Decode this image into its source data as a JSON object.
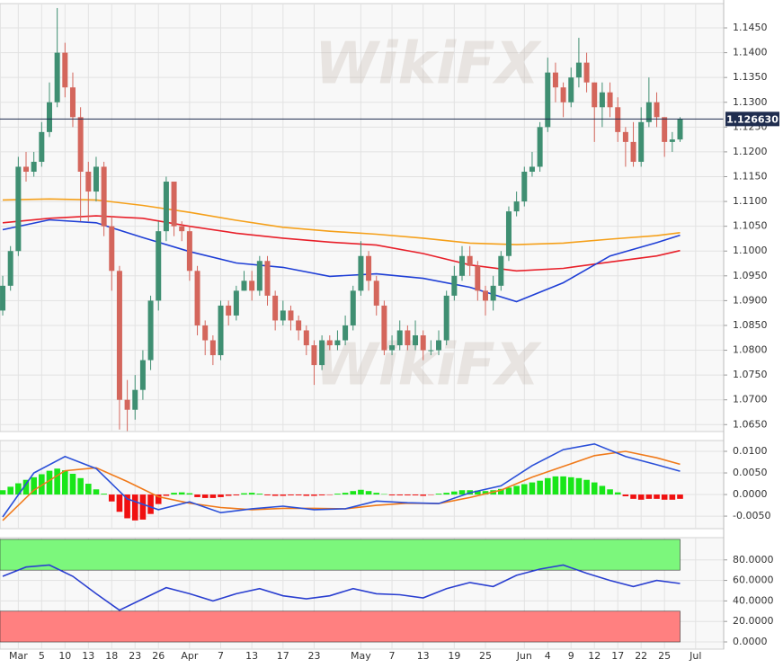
{
  "chart_data": [
    {
      "type": "candlestick",
      "xlim": [
        -0.35,
        92.6
      ],
      "ylim": [
        1.0636,
        1.1499
      ],
      "yticks": [
        {
          "value": 1.145,
          "label": "1.1450"
        },
        {
          "value": 1.14,
          "label": "1.1400"
        },
        {
          "value": 1.135,
          "label": "1.1350"
        },
        {
          "value": 1.13,
          "label": "1.1300"
        },
        {
          "value": 1.125,
          "label": "1.1250"
        },
        {
          "value": 1.12,
          "label": "1.1200"
        },
        {
          "value": 1.115,
          "label": "1.1150"
        },
        {
          "value": 1.11,
          "label": "1.1100"
        },
        {
          "value": 1.105,
          "label": "1.1050"
        },
        {
          "value": 1.1,
          "label": "1.1000"
        },
        {
          "value": 1.095,
          "label": "1.0950"
        },
        {
          "value": 1.09,
          "label": "1.0900"
        },
        {
          "value": 1.085,
          "label": "1.0850"
        },
        {
          "value": 1.08,
          "label": "1.0800"
        },
        {
          "value": 1.075,
          "label": "1.0750"
        },
        {
          "value": 1.07,
          "label": "1.0700"
        },
        {
          "value": 1.065,
          "label": "1.0650"
        }
      ],
      "grid": true,
      "up_color": "#3f8f72",
      "down_color": "#d4665c",
      "watermark": "WikiFX",
      "last_price": {
        "value": 1.12663,
        "label": "1.126630"
      },
      "last_color": "#1f2d4f",
      "open": [
        1.088,
        1.093,
        1.1,
        1.117,
        1.116,
        1.118,
        1.124,
        1.13,
        1.14,
        1.133,
        1.127,
        1.116,
        1.112,
        1.117,
        1.105,
        1.096,
        1.07,
        1.068,
        1.072,
        1.078,
        1.09,
        1.104,
        1.114,
        1.105,
        1.104,
        1.096,
        1.085,
        1.082,
        1.079,
        1.089,
        1.087,
        1.092,
        1.094,
        1.092,
        1.098,
        1.091,
        1.086,
        1.088,
        1.086,
        1.084,
        1.081,
        1.077,
        1.082,
        1.081,
        1.082,
        1.085,
        1.092,
        1.099,
        1.094,
        1.089,
        1.08,
        1.081,
        1.084,
        1.081,
        1.083,
        1.08,
        1.08,
        1.082,
        1.091,
        1.095,
        1.099,
        1.097,
        1.092,
        1.09,
        1.093,
        1.099,
        1.108,
        1.11,
        1.116,
        1.117,
        1.125,
        1.136,
        1.133,
        1.13,
        1.135,
        1.138,
        1.134,
        1.129,
        1.132,
        1.129,
        1.124,
        1.122,
        1.118,
        1.126,
        1.13,
        1.127,
        1.122,
        1.1225,
        null,
        null
      ],
      "high": [
        1.095,
        1.101,
        1.119,
        1.12,
        1.12,
        1.126,
        1.134,
        1.149,
        1.142,
        1.136,
        1.129,
        1.118,
        1.119,
        1.118,
        1.107,
        1.097,
        1.074,
        1.075,
        1.08,
        1.091,
        1.106,
        1.115,
        1.114,
        1.106,
        1.105,
        1.097,
        1.086,
        1.083,
        1.09,
        1.09,
        1.093,
        1.096,
        1.096,
        1.099,
        1.099,
        1.092,
        1.09,
        1.089,
        1.087,
        1.085,
        1.082,
        1.083,
        1.083,
        1.084,
        1.087,
        1.093,
        1.102,
        1.1,
        1.095,
        1.09,
        1.083,
        1.086,
        1.085,
        1.086,
        1.084,
        1.082,
        1.084,
        1.092,
        1.097,
        1.101,
        1.101,
        1.098,
        1.093,
        1.095,
        1.1,
        1.109,
        1.112,
        1.117,
        1.12,
        1.126,
        1.139,
        1.138,
        1.134,
        1.137,
        1.143,
        1.14,
        1.134,
        1.134,
        1.134,
        1.131,
        1.125,
        1.126,
        1.129,
        1.135,
        1.132,
        1.127,
        1.124,
        1.127,
        null,
        null
      ],
      "low": [
        1.087,
        1.092,
        1.099,
        1.114,
        1.115,
        1.117,
        1.123,
        1.129,
        1.131,
        1.125,
        1.106,
        1.106,
        1.11,
        1.103,
        1.092,
        1.064,
        1.0637,
        1.066,
        1.07,
        1.076,
        1.088,
        1.102,
        1.103,
        1.102,
        1.094,
        1.083,
        1.079,
        1.077,
        1.078,
        1.085,
        1.086,
        1.092,
        1.09,
        1.091,
        1.089,
        1.084,
        1.085,
        1.084,
        1.082,
        1.079,
        1.073,
        1.076,
        1.08,
        1.08,
        1.081,
        1.084,
        1.091,
        1.092,
        1.087,
        1.079,
        1.079,
        1.08,
        1.08,
        1.08,
        1.078,
        1.079,
        1.079,
        1.081,
        1.09,
        1.094,
        1.095,
        1.09,
        1.087,
        1.088,
        1.092,
        1.098,
        1.107,
        1.109,
        1.115,
        1.116,
        1.124,
        1.13,
        1.127,
        1.129,
        1.133,
        1.132,
        1.122,
        1.125,
        1.127,
        1.122,
        1.117,
        1.117,
        1.117,
        1.125,
        1.125,
        1.119,
        1.12,
        1.122,
        null,
        null
      ],
      "close": [
        1.093,
        1.1,
        1.117,
        1.116,
        1.118,
        1.124,
        1.13,
        1.14,
        1.133,
        1.127,
        1.116,
        1.112,
        1.117,
        1.105,
        1.096,
        1.07,
        1.068,
        1.072,
        1.078,
        1.09,
        1.104,
        1.114,
        1.105,
        1.104,
        1.096,
        1.085,
        1.082,
        1.079,
        1.089,
        1.087,
        1.092,
        1.094,
        1.092,
        1.098,
        1.091,
        1.086,
        1.088,
        1.086,
        1.084,
        1.081,
        1.077,
        1.082,
        1.081,
        1.082,
        1.085,
        1.092,
        1.099,
        1.094,
        1.089,
        1.08,
        1.081,
        1.084,
        1.081,
        1.083,
        1.08,
        1.08,
        1.082,
        1.091,
        1.095,
        1.099,
        1.097,
        1.092,
        1.09,
        1.093,
        1.099,
        1.108,
        1.11,
        1.116,
        1.117,
        1.125,
        1.136,
        1.133,
        1.13,
        1.135,
        1.138,
        1.134,
        1.129,
        1.132,
        1.129,
        1.124,
        1.122,
        1.118,
        1.126,
        1.13,
        1.127,
        1.122,
        1.1225,
        1.1266,
        null,
        null
      ],
      "lines": [
        {
          "color": "#f5a01a",
          "x": [
            0,
            6,
            12,
            18,
            24,
            30,
            36,
            42,
            48,
            54,
            60,
            66,
            72,
            78,
            84,
            87
          ],
          "values": [
            1.1103,
            1.1105,
            1.1103,
            1.1092,
            1.1078,
            1.1062,
            1.1048,
            1.104,
            1.1034,
            1.1026,
            1.1016,
            1.1013,
            1.1016,
            1.1024,
            1.1031,
            1.1037
          ]
        },
        {
          "color": "#e8202a",
          "x": [
            0,
            6,
            12,
            18,
            24,
            30,
            36,
            42,
            48,
            54,
            60,
            66,
            72,
            78,
            84,
            87
          ],
          "values": [
            1.1057,
            1.1066,
            1.1071,
            1.1066,
            1.105,
            1.1036,
            1.1026,
            1.1018,
            1.1012,
            1.0995,
            1.0972,
            1.096,
            1.0965,
            1.0978,
            1.099,
            1.1001
          ]
        },
        {
          "color": "#1f3fd6",
          "x": [
            0,
            6,
            12,
            18,
            24,
            30,
            36,
            42,
            48,
            54,
            60,
            66,
            72,
            78,
            84,
            87
          ],
          "values": [
            1.1043,
            1.1063,
            1.1057,
            1.1027,
            1.0999,
            1.0976,
            1.0967,
            1.0949,
            1.0954,
            1.0945,
            1.0927,
            1.0898,
            1.0936,
            1.099,
            1.1017,
            1.1032
          ]
        }
      ]
    },
    {
      "type": "macd",
      "xlim": [
        -0.35,
        92.6
      ],
      "ylim": [
        -0.0079,
        0.0125
      ],
      "yticks": [
        {
          "value": 0.01,
          "label": "0.0100"
        },
        {
          "value": 0.005,
          "label": "0.0050"
        },
        {
          "value": 0,
          "label": "0.0000"
        },
        {
          "value": -0.005,
          "label": "-0.0050"
        }
      ],
      "grid": true,
      "pos_color": "#19e619",
      "neg_color": "#f01010",
      "histogram": [
        0.001,
        0.0018,
        0.0026,
        0.0034,
        0.004,
        0.0047,
        0.0055,
        0.006,
        0.0056,
        0.0048,
        0.0038,
        0.0025,
        0.0012,
        0.0002,
        -0.0016,
        -0.004,
        -0.0055,
        -0.006,
        -0.0058,
        -0.0045,
        -0.0022,
        -0.0003,
        0.0004,
        0.0005,
        0.0003,
        -0.0006,
        -0.0008,
        -0.0008,
        -0.0006,
        -0.0003,
        -0.0002,
        0.0003,
        0.0004,
        0.0002,
        -0.0002,
        -0.0003,
        -0.0003,
        -0.0002,
        -0.0002,
        -0.0003,
        -0.0003,
        -0.0002,
        -0.0001,
        0.0002,
        0.0004,
        0.0008,
        0.0011,
        0.0008,
        0.0004,
        0.0001,
        -0.0002,
        -0.0002,
        -0.0002,
        -0.0002,
        -0.0003,
        -0.0001,
        0.0002,
        0.0004,
        0.0007,
        0.001,
        0.001,
        0.0009,
        0.0008,
        0.001,
        0.0013,
        0.0016,
        0.002,
        0.0024,
        0.0028,
        0.0032,
        0.0038,
        0.0042,
        0.0042,
        0.004,
        0.0038,
        0.0034,
        0.0028,
        0.002,
        0.0012,
        0.0005,
        -0.0004,
        -0.001,
        -0.0012,
        -0.001,
        -0.001,
        -0.0012,
        -0.0012,
        -0.001,
        null,
        null
      ],
      "lines": [
        {
          "color": "#f07a1a",
          "x": [
            0,
            4,
            8,
            12,
            16,
            20,
            24,
            28,
            32,
            36,
            40,
            44,
            48,
            52,
            56,
            60,
            64,
            68,
            72,
            76,
            80,
            84,
            87
          ],
          "values": [
            -0.006,
            0.001,
            0.0055,
            0.0062,
            0.003,
            -0.0005,
            -0.002,
            -0.003,
            -0.0035,
            -0.0032,
            -0.0032,
            -0.0033,
            -0.0025,
            -0.002,
            -0.0021,
            -0.0007,
            0.001,
            0.004,
            0.0065,
            0.009,
            0.01,
            0.0085,
            0.007
          ]
        },
        {
          "color": "#2a4fd8",
          "x": [
            0,
            4,
            8,
            12,
            16,
            20,
            24,
            28,
            32,
            36,
            40,
            44,
            48,
            52,
            56,
            60,
            64,
            68,
            72,
            76,
            80,
            84,
            87
          ],
          "values": [
            -0.0052,
            0.005,
            0.0088,
            0.006,
            -0.001,
            -0.0035,
            -0.0017,
            -0.0042,
            -0.0033,
            -0.0027,
            -0.0035,
            -0.0033,
            -0.0015,
            -0.0019,
            -0.0021,
            0.0004,
            0.002,
            0.0067,
            0.0104,
            0.0117,
            0.0088,
            0.0069,
            0.0054
          ]
        }
      ]
    },
    {
      "type": "line",
      "xlim": [
        -0.35,
        92.6
      ],
      "ylim": [
        -7,
        101.7
      ],
      "yticks": [
        {
          "value": 80,
          "label": "80.0000"
        },
        {
          "value": 60,
          "label": "60.0000"
        },
        {
          "value": 40,
          "label": "40.0000"
        },
        {
          "value": 20,
          "label": "20.0000"
        },
        {
          "value": 0,
          "label": "0.0000"
        }
      ],
      "grid": true,
      "categories": [
        null,
        null,
        "Mar",
        null,
        null,
        "5",
        null,
        null,
        "10",
        null,
        null,
        "13",
        null,
        null,
        "18",
        null,
        null,
        "23",
        null,
        null,
        "26",
        null,
        null,
        null,
        "Apr",
        null,
        null,
        null,
        "7",
        null,
        null,
        null,
        "13",
        null,
        null,
        null,
        "17",
        null,
        null,
        null,
        "23",
        null,
        null,
        null,
        null,
        null,
        "May",
        null,
        null,
        null,
        "7",
        null,
        null,
        null,
        "13",
        null,
        null,
        null,
        "19",
        null,
        null,
        null,
        "25",
        null,
        null,
        null,
        null,
        "Jun",
        null,
        null,
        "4",
        null,
        null,
        "9",
        null,
        null,
        "12",
        null,
        null,
        "17",
        null,
        null,
        "22",
        null,
        null,
        "25",
        null,
        null,
        null,
        "Jul"
      ],
      "bands": [
        {
          "from": 70,
          "to": 100,
          "color": "#7cf77c"
        },
        {
          "from": 0,
          "to": 30,
          "color": "#ff8080"
        }
      ],
      "lines": [
        {
          "color": "#2a3fd0",
          "x": [
            0,
            3,
            6,
            9,
            12,
            15,
            18,
            21,
            24,
            27,
            30,
            33,
            36,
            39,
            42,
            45,
            48,
            51,
            54,
            57,
            60,
            63,
            66,
            69,
            72,
            75,
            78,
            81,
            84,
            87
          ],
          "values": [
            64,
            73,
            75,
            64,
            47,
            31,
            42,
            53,
            47,
            40,
            47,
            52,
            45,
            42,
            45,
            52,
            47,
            46,
            43,
            52,
            58,
            54,
            65,
            71,
            75,
            67,
            60,
            54,
            60,
            57
          ]
        }
      ]
    }
  ]
}
